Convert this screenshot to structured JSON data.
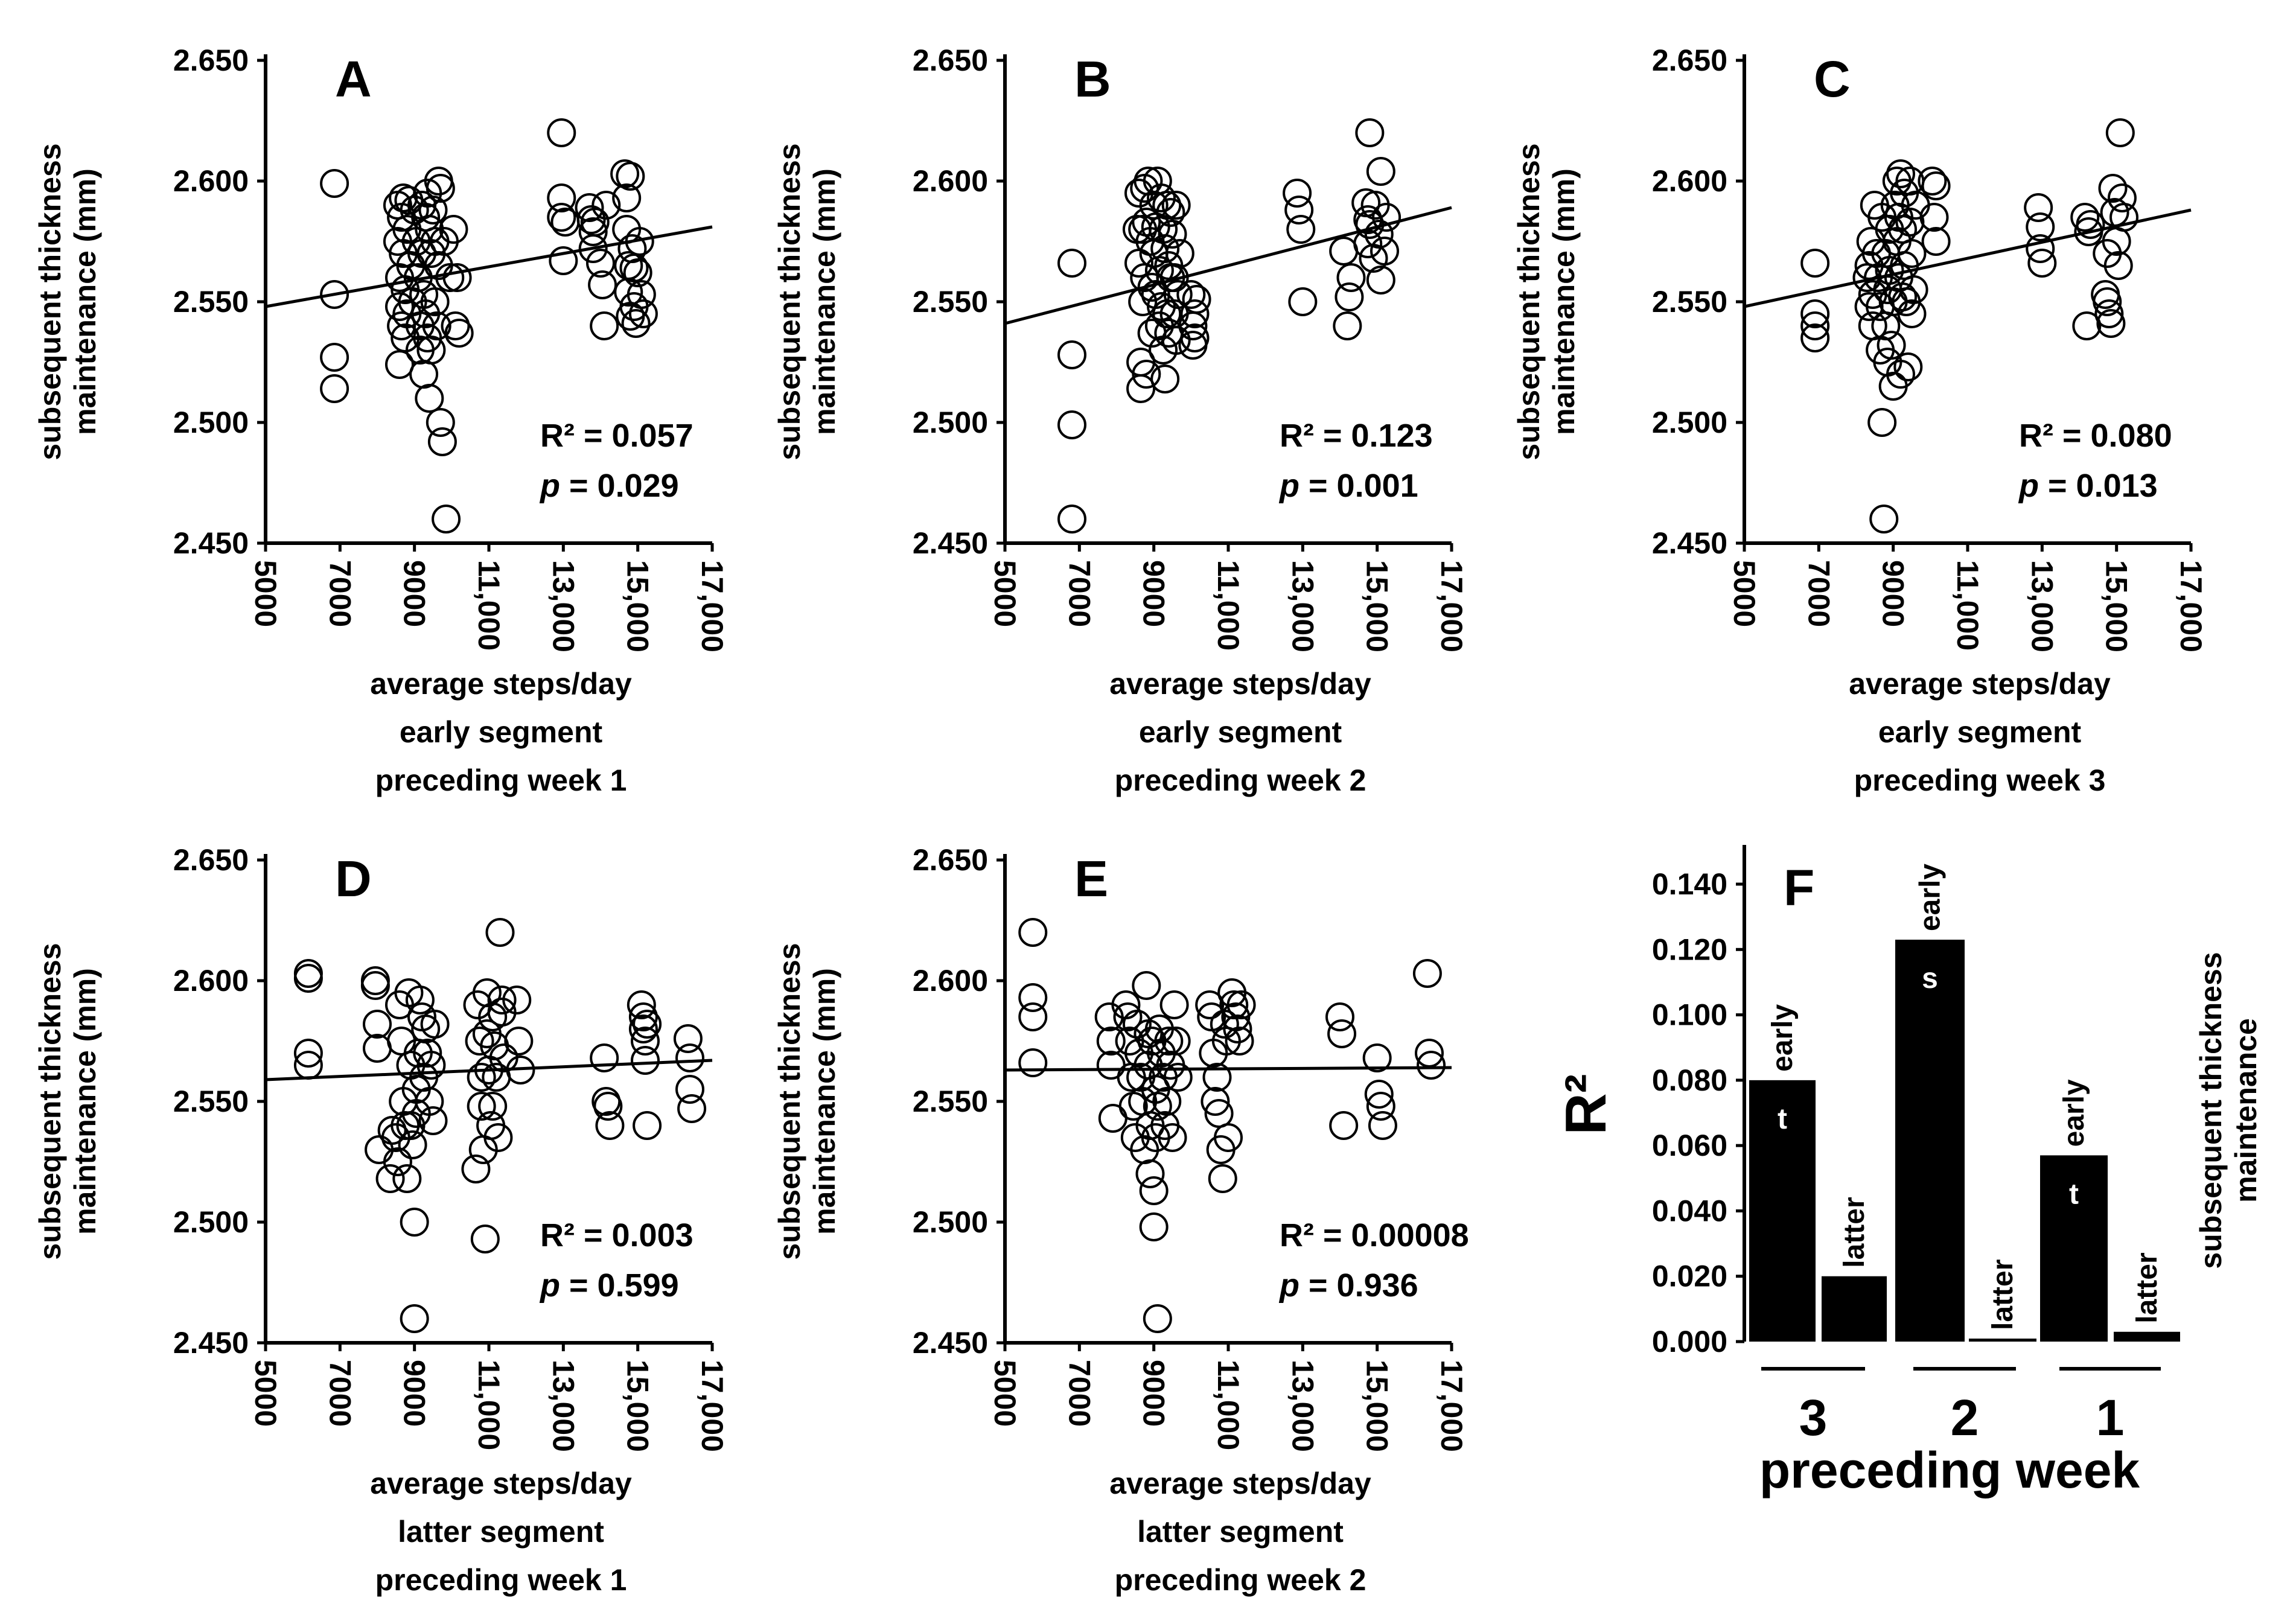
{
  "chart_data": [
    {
      "panel": "A",
      "type": "scatter",
      "ylabel": [
        "subsequent thickness",
        "maintenance (mm)"
      ],
      "xlabel": [
        "average steps/day",
        "early segment",
        "preceding week 1"
      ],
      "xlim": [
        5000,
        17000
      ],
      "ylim": [
        2.45,
        2.65
      ],
      "xticks": [
        "5000",
        "7000",
        "9000",
        "11,000",
        "13,000",
        "15,000",
        "17,000"
      ],
      "yticks": [
        "2.450",
        "2.500",
        "2.550",
        "2.600",
        "2.650"
      ],
      "r2": "R² = 0.057",
      "p_label": "p",
      "p_value": " = 0.029",
      "fit": {
        "x": [
          5000,
          17000
        ],
        "y": [
          2.548,
          2.581
        ]
      },
      "x": [
        6850,
        6850,
        6850,
        6850,
        8550,
        8550,
        8600,
        8600,
        8600,
        8650,
        8650,
        8700,
        8700,
        8750,
        8750,
        8800,
        8800,
        8850,
        8900,
        8950,
        9000,
        9050,
        9100,
        9150,
        9150,
        9200,
        9200,
        9250,
        9250,
        9300,
        9300,
        9350,
        9350,
        9400,
        9400,
        9450,
        9450,
        9500,
        9550,
        9550,
        9600,
        9650,
        9650,
        9700,
        9700,
        9750,
        9800,
        9850,
        9950,
        10050,
        10100,
        10150,
        10200,
        12950,
        12950,
        12950,
        13000,
        13050,
        13700,
        13750,
        13800,
        13800,
        13850,
        14000,
        14050,
        14100,
        14150,
        14650,
        14700,
        14700,
        14750,
        14750,
        14800,
        14800,
        14850,
        14900,
        14900,
        14950,
        15000,
        15050,
        15100,
        15150
      ],
      "y": [
        2.599,
        2.553,
        2.527,
        2.514,
        2.59,
        2.575,
        2.56,
        2.548,
        2.524,
        2.585,
        2.54,
        2.593,
        2.57,
        2.555,
        2.535,
        2.58,
        2.545,
        2.592,
        2.565,
        2.55,
        2.588,
        2.575,
        2.56,
        2.54,
        2.53,
        2.59,
        2.57,
        2.553,
        2.52,
        2.585,
        2.545,
        2.595,
        2.535,
        2.58,
        2.51,
        2.57,
        2.53,
        2.588,
        2.575,
        2.55,
        2.54,
        2.6,
        2.565,
        2.597,
        2.5,
        2.492,
        2.575,
        2.46,
        2.56,
        2.58,
        2.54,
        2.56,
        2.537,
        2.62,
        2.593,
        2.585,
        2.567,
        2.583,
        2.589,
        2.584,
        2.579,
        2.572,
        2.583,
        2.566,
        2.557,
        2.54,
        2.59,
        2.603,
        2.593,
        2.58,
        2.565,
        2.554,
        2.602,
        2.544,
        2.572,
        2.548,
        2.564,
        2.541,
        2.562,
        2.575,
        2.553,
        2.545
      ]
    },
    {
      "panel": "B",
      "type": "scatter",
      "ylabel": [
        "subsequent thickness",
        "maintenance (mm)"
      ],
      "xlabel": [
        "average steps/day",
        "early segment",
        "preceding week 2"
      ],
      "xlim": [
        5000,
        17000
      ],
      "ylim": [
        2.45,
        2.65
      ],
      "xticks": [
        "5000",
        "7000",
        "9000",
        "11,000",
        "13,000",
        "15,000",
        "17,000"
      ],
      "yticks": [
        "2.450",
        "2.500",
        "2.550",
        "2.600",
        "2.650"
      ],
      "r2": "R² = 0.123",
      "p_label": "p",
      "p_value": " = 0.001",
      "fit": {
        "x": [
          5000,
          17000
        ],
        "y": [
          2.541,
          2.589
        ]
      },
      "x": [
        6800,
        6800,
        6800,
        6800,
        8550,
        8600,
        8600,
        8650,
        8650,
        8700,
        8700,
        8750,
        8750,
        8800,
        8800,
        8850,
        8900,
        8950,
        8950,
        9000,
        9000,
        9050,
        9050,
        9100,
        9150,
        9150,
        9200,
        9200,
        9250,
        9250,
        9300,
        9300,
        9350,
        9350,
        9400,
        9400,
        9450,
        9450,
        9500,
        9550,
        9550,
        9600,
        9600,
        9650,
        9700,
        10000,
        10050,
        10050,
        10100,
        10100,
        10150,
        12850,
        12900,
        12950,
        13000,
        14100,
        14200,
        14250,
        14300,
        14700,
        14750,
        14750,
        14800,
        14800,
        14900,
        14950,
        15050,
        15100,
        15100,
        15200,
        15250
      ],
      "y": [
        2.566,
        2.528,
        2.499,
        2.46,
        2.58,
        2.595,
        2.566,
        2.525,
        2.514,
        2.58,
        2.55,
        2.597,
        2.56,
        2.583,
        2.52,
        2.6,
        2.575,
        2.556,
        2.537,
        2.59,
        2.57,
        2.581,
        2.553,
        2.6,
        2.54,
        2.563,
        2.593,
        2.548,
        2.58,
        2.53,
        2.572,
        2.518,
        2.59,
        2.545,
        2.565,
        2.537,
        2.587,
        2.56,
        2.578,
        2.56,
        2.545,
        2.59,
        2.534,
        2.553,
        2.57,
        2.553,
        2.54,
        2.532,
        2.545,
        2.535,
        2.551,
        2.595,
        2.588,
        2.58,
        2.55,
        2.571,
        2.54,
        2.552,
        2.56,
        2.591,
        2.584,
        2.574,
        2.62,
        2.582,
        2.568,
        2.59,
        2.578,
        2.604,
        2.559,
        2.571,
        2.585
      ]
    },
    {
      "panel": "C",
      "type": "scatter",
      "ylabel": [
        "subsequent thickness",
        "maintenance (mm)"
      ],
      "xlabel": [
        "average steps/day",
        "early segment",
        "preceding week 3"
      ],
      "xlim": [
        5000,
        17000
      ],
      "ylim": [
        2.45,
        2.65
      ],
      "xticks": [
        "5000",
        "7000",
        "9000",
        "11,000",
        "13,000",
        "15,000",
        "17,000"
      ],
      "yticks": [
        "2.450",
        "2.500",
        "2.550",
        "2.600",
        "2.650"
      ],
      "r2": "R² = 0.080",
      "p_label": "p",
      "p_value": " = 0.013",
      "fit": {
        "x": [
          5000,
          17000
        ],
        "y": [
          2.548,
          2.588
        ]
      },
      "x": [
        6900,
        6900,
        6900,
        6900,
        8300,
        8350,
        8350,
        8400,
        8450,
        8450,
        8500,
        8550,
        8600,
        8650,
        8650,
        8700,
        8700,
        8750,
        8800,
        8800,
        8850,
        8850,
        8900,
        8900,
        8950,
        9000,
        9000,
        9050,
        9100,
        9100,
        9150,
        9150,
        9200,
        9200,
        9250,
        9250,
        9300,
        9300,
        9350,
        9400,
        9450,
        9450,
        9500,
        9500,
        9550,
        9600,
        10050,
        10100,
        10150,
        10150,
        12900,
        12950,
        12950,
        13000,
        14150,
        14200,
        14250,
        14300,
        14700,
        14750,
        14750,
        14800,
        14850,
        14900,
        14950,
        15000,
        15050,
        15100,
        15150,
        15200
      ],
      "y": [
        2.566,
        2.545,
        2.54,
        2.535,
        2.56,
        2.548,
        2.565,
        2.575,
        2.54,
        2.553,
        2.59,
        2.57,
        2.56,
        2.548,
        2.53,
        2.585,
        2.5,
        2.46,
        2.57,
        2.54,
        2.555,
        2.525,
        2.563,
        2.58,
        2.532,
        2.515,
        2.55,
        2.59,
        2.575,
        2.6,
        2.56,
        2.585,
        2.603,
        2.52,
        2.58,
        2.552,
        2.595,
        2.565,
        2.55,
        2.523,
        2.583,
        2.6,
        2.545,
        2.57,
        2.555,
        2.59,
        2.6,
        2.585,
        2.598,
        2.575,
        2.589,
        2.581,
        2.572,
        2.566,
        2.585,
        2.54,
        2.579,
        2.582,
        2.553,
        2.57,
        2.55,
        2.545,
        2.541,
        2.597,
        2.587,
        2.575,
        2.565,
        2.62,
        2.593,
        2.585
      ]
    },
    {
      "panel": "D",
      "type": "scatter",
      "ylabel": [
        "subsequent thickness",
        "maintenance (mm)"
      ],
      "xlabel": [
        "average steps/day",
        "latter segment",
        "preceding week 1"
      ],
      "xlim": [
        5000,
        17000
      ],
      "ylim": [
        2.45,
        2.65
      ],
      "xticks": [
        "5000",
        "7000",
        "9000",
        "11,000",
        "13,000",
        "15,000",
        "17,000"
      ],
      "yticks": [
        "2.450",
        "2.500",
        "2.550",
        "2.600",
        "2.650"
      ],
      "r2": "R² = 0.003",
      "p_label": "p",
      "p_value": " = 0.599",
      "fit": {
        "x": [
          5000,
          17000
        ],
        "y": [
          2.559,
          2.567
        ]
      },
      "x": [
        6150,
        6150,
        6150,
        6150,
        7950,
        7950,
        8000,
        8000,
        8050,
        8350,
        8400,
        8500,
        8550,
        8600,
        8650,
        8700,
        8750,
        8800,
        8850,
        8900,
        8900,
        8950,
        9000,
        9000,
        9050,
        9050,
        9100,
        9150,
        9200,
        9250,
        9300,
        9350,
        9400,
        9450,
        9500,
        9550,
        10650,
        10700,
        10750,
        10800,
        10800,
        10850,
        10900,
        10950,
        10950,
        11000,
        11050,
        11100,
        11100,
        11150,
        11200,
        11250,
        11300,
        11350,
        11350,
        11400,
        11750,
        11800,
        11850,
        14100,
        14150,
        14200,
        14250,
        15100,
        15150,
        15150,
        15200,
        15200,
        15250,
        15250,
        16350,
        16400,
        16400,
        16450
      ],
      "y": [
        2.603,
        2.601,
        2.57,
        2.565,
        2.6,
        2.598,
        2.582,
        2.572,
        2.53,
        2.518,
        2.538,
        2.535,
        2.525,
        2.59,
        2.575,
        2.55,
        2.54,
        2.518,
        2.595,
        2.565,
        2.54,
        2.532,
        2.5,
        2.46,
        2.555,
        2.545,
        2.57,
        2.592,
        2.585,
        2.56,
        2.58,
        2.57,
        2.55,
        2.565,
        2.542,
        2.582,
        2.522,
        2.59,
        2.575,
        2.56,
        2.548,
        2.53,
        2.493,
        2.595,
        2.578,
        2.563,
        2.54,
        2.585,
        2.548,
        2.573,
        2.56,
        2.535,
        2.62,
        2.592,
        2.587,
        2.568,
        2.592,
        2.575,
        2.563,
        2.568,
        2.55,
        2.548,
        2.54,
        2.59,
        2.585,
        2.58,
        2.575,
        2.567,
        2.582,
        2.54,
        2.576,
        2.568,
        2.555,
        2.547
      ]
    },
    {
      "panel": "E",
      "type": "scatter",
      "ylabel": [
        "subsequent thickness",
        "maintenance (mm)"
      ],
      "xlabel": [
        "average steps/day",
        "latter segment",
        "preceding week 2"
      ],
      "xlim": [
        5000,
        17000
      ],
      "ylim": [
        2.45,
        2.65
      ],
      "xticks": [
        "5000",
        "7000",
        "9000",
        "11,000",
        "13,000",
        "15,000",
        "17,000"
      ],
      "yticks": [
        "2.450",
        "2.500",
        "2.550",
        "2.600",
        "2.650"
      ],
      "r2": "R² = 0.00008",
      "p_label": "p",
      "p_value": " = 0.936",
      "fit": {
        "x": [
          5000,
          17000
        ],
        "y": [
          2.563,
          2.564
        ]
      },
      "x": [
        5750,
        5750,
        5750,
        5750,
        7800,
        7850,
        7850,
        7900,
        8250,
        8300,
        8350,
        8400,
        8450,
        8500,
        8550,
        8600,
        8650,
        8700,
        8750,
        8800,
        8850,
        8850,
        8900,
        8900,
        8950,
        9000,
        9000,
        9050,
        9050,
        9100,
        9100,
        9150,
        9200,
        9250,
        9300,
        9350,
        9400,
        9450,
        9500,
        9550,
        9600,
        9650,
        10500,
        10550,
        10600,
        10650,
        10700,
        10750,
        10800,
        10850,
        10900,
        10950,
        11000,
        11100,
        11150,
        11200,
        11250,
        11300,
        11350,
        14000,
        14050,
        14100,
        15000,
        15050,
        15100,
        15150,
        16350,
        16400,
        16450
      ],
      "y": [
        2.62,
        2.593,
        2.585,
        2.566,
        2.585,
        2.575,
        2.565,
        2.543,
        2.59,
        2.585,
        2.575,
        2.56,
        2.548,
        2.535,
        2.582,
        2.57,
        2.56,
        2.55,
        2.53,
        2.598,
        2.578,
        2.565,
        2.54,
        2.52,
        2.575,
        2.513,
        2.498,
        2.555,
        2.535,
        2.46,
        2.548,
        2.58,
        2.57,
        2.56,
        2.54,
        2.55,
        2.575,
        2.565,
        2.535,
        2.59,
        2.575,
        2.56,
        2.59,
        2.585,
        2.57,
        2.55,
        2.56,
        2.545,
        2.53,
        2.518,
        2.582,
        2.575,
        2.535,
        2.595,
        2.59,
        2.585,
        2.58,
        2.575,
        2.59,
        2.585,
        2.578,
        2.54,
        2.568,
        2.553,
        2.548,
        2.54,
        2.603,
        2.57,
        2.565
      ]
    },
    {
      "panel": "F",
      "type": "bar",
      "ylabel": "R²",
      "right_label": [
        "subsequent thickness",
        "maintenance"
      ],
      "xlabel": "preceding week",
      "groups": [
        "3",
        "2",
        "1"
      ],
      "ylim": [
        0,
        0.14
      ],
      "yticks": [
        "0.000",
        "0.020",
        "0.040",
        "0.060",
        "0.080",
        "0.100",
        "0.120",
        "0.140"
      ],
      "bars": [
        {
          "group": "3",
          "segment": "early",
          "value": 0.08,
          "mark": "t"
        },
        {
          "group": "3",
          "segment": "latter",
          "value": 0.02,
          "mark": ""
        },
        {
          "group": "2",
          "segment": "early",
          "value": 0.123,
          "mark": "s"
        },
        {
          "group": "2",
          "segment": "latter",
          "value": 8e-05,
          "mark": ""
        },
        {
          "group": "1",
          "segment": "early",
          "value": 0.057,
          "mark": "t"
        },
        {
          "group": "1",
          "segment": "latter",
          "value": 0.003,
          "mark": ""
        }
      ]
    }
  ]
}
